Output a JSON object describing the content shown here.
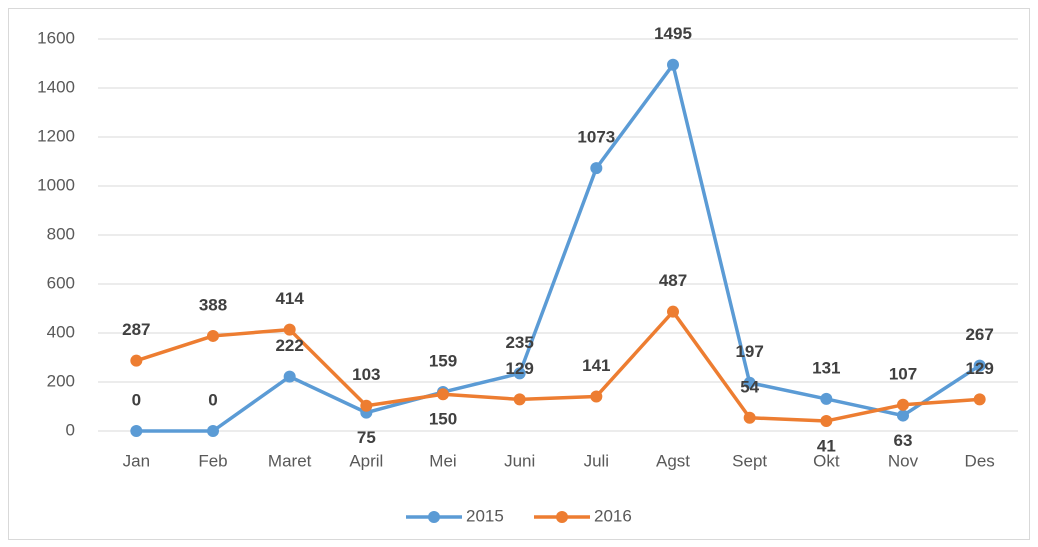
{
  "chart_data": {
    "type": "line",
    "categories": [
      "Jan",
      "Feb",
      "Maret",
      "April",
      "Mei",
      "Juni",
      "Juli",
      "Agst",
      "Sept",
      "Okt",
      "Nov",
      "Des"
    ],
    "series": [
      {
        "name": "2015",
        "color": "#5b9bd5",
        "values": [
          0,
          0,
          222,
          75,
          159,
          235,
          1073,
          1495,
          197,
          131,
          63,
          267
        ]
      },
      {
        "name": "2016",
        "color": "#ed7d31",
        "values": [
          287,
          388,
          414,
          103,
          150,
          129,
          141,
          487,
          54,
          41,
          107,
          129
        ]
      }
    ],
    "ylim": [
      0,
      1600
    ],
    "yticks": [
      0,
      200,
      400,
      600,
      800,
      1000,
      1200,
      1400,
      1600
    ],
    "grid": true,
    "legend": "bottom",
    "data_labels": true
  }
}
